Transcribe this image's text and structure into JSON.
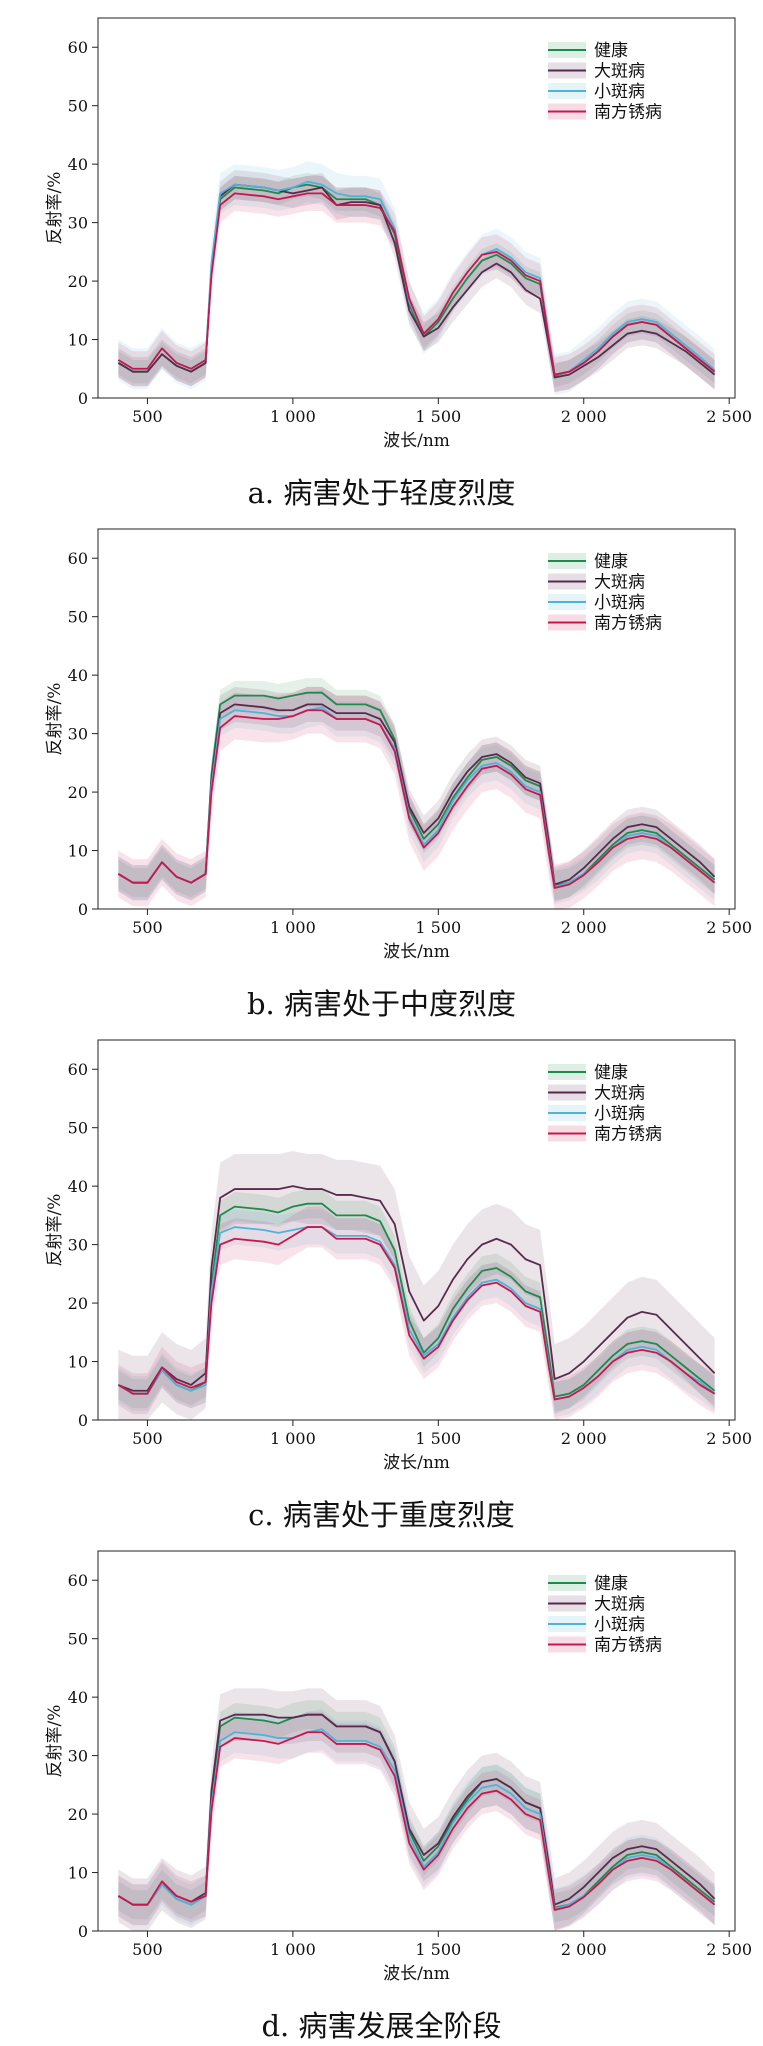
{
  "colors": {
    "healthy": "#1e8a4c",
    "large_spot": "#5a2a4e",
    "small_spot": "#4fb3d9",
    "rust": "#c8174f"
  },
  "chart_data": [
    {
      "type": "line",
      "caption": "a. 病害处于轻度烈度",
      "xlabel": "波长/nm",
      "ylabel": "反射率/%",
      "xlim": [
        330,
        2520
      ],
      "ylim": [
        0,
        65
      ],
      "xticks": [
        500,
        1000,
        1500,
        2000,
        2500
      ],
      "xtick_labels": [
        "500",
        "1 000",
        "1 500",
        "2 000",
        "2 500"
      ],
      "yticks": [
        0,
        10,
        20,
        30,
        40,
        50,
        60
      ],
      "ytick_labels": [
        "0",
        "10",
        "20",
        "30",
        "40",
        "50",
        "60"
      ],
      "legend_position": "top-right",
      "x": [
        400,
        450,
        500,
        550,
        600,
        650,
        700,
        720,
        750,
        800,
        900,
        950,
        1000,
        1050,
        1100,
        1150,
        1200,
        1250,
        1300,
        1350,
        1400,
        1450,
        1500,
        1550,
        1600,
        1650,
        1700,
        1750,
        1800,
        1850,
        1880,
        1900,
        1950,
        2000,
        2050,
        2100,
        2150,
        2200,
        2250,
        2300,
        2350,
        2400,
        2450
      ],
      "series": [
        {
          "name": "健康",
          "key": "healthy",
          "values": [
            6.0,
            4.5,
            4.5,
            7.5,
            5.5,
            4.5,
            6.0,
            22.0,
            34.0,
            36.0,
            35.5,
            35.0,
            36.0,
            36.5,
            36.0,
            34.0,
            34.0,
            34.0,
            33.0,
            28.0,
            16.0,
            10.5,
            13.0,
            17.0,
            20.5,
            23.5,
            24.5,
            23.0,
            20.5,
            19.5,
            10.0,
            3.8,
            4.5,
            6.0,
            8.0,
            10.5,
            12.5,
            13.0,
            12.5,
            10.5,
            8.5,
            6.5,
            4.5
          ],
          "spread": 2.0
        },
        {
          "name": "大斑病",
          "key": "large_spot",
          "values": [
            6.0,
            4.5,
            4.5,
            7.5,
            5.5,
            4.5,
            6.0,
            22.0,
            34.5,
            36.5,
            36.0,
            35.5,
            35.0,
            35.5,
            36.0,
            33.0,
            33.5,
            33.5,
            33.0,
            26.5,
            15.0,
            10.5,
            12.0,
            15.5,
            18.5,
            21.5,
            23.0,
            21.5,
            18.5,
            17.0,
            9.0,
            3.5,
            4.0,
            5.5,
            7.0,
            9.0,
            11.0,
            11.5,
            11.0,
            9.5,
            8.0,
            6.0,
            4.0
          ],
          "spread": 2.5
        },
        {
          "name": "小斑病",
          "key": "small_spot",
          "values": [
            6.5,
            5.0,
            5.0,
            8.5,
            6.0,
            5.0,
            6.5,
            23.0,
            35.0,
            36.5,
            36.0,
            35.5,
            36.0,
            37.0,
            36.5,
            35.0,
            34.5,
            34.5,
            34.0,
            29.0,
            16.5,
            11.0,
            13.5,
            18.0,
            21.5,
            24.5,
            25.5,
            24.0,
            21.5,
            20.5,
            10.5,
            4.0,
            4.5,
            6.5,
            8.5,
            11.0,
            13.0,
            13.5,
            13.0,
            11.0,
            9.0,
            7.0,
            4.8
          ],
          "spread": 3.5
        },
        {
          "name": "南方锈病",
          "key": "rust",
          "values": [
            6.5,
            5.0,
            5.0,
            8.5,
            6.0,
            5.0,
            6.5,
            21.0,
            33.0,
            35.0,
            34.5,
            34.0,
            34.5,
            35.0,
            35.0,
            33.0,
            33.0,
            33.0,
            32.5,
            28.5,
            17.0,
            11.0,
            13.5,
            18.0,
            21.5,
            24.5,
            25.0,
            23.5,
            21.0,
            20.0,
            10.0,
            4.0,
            4.5,
            6.0,
            8.0,
            10.5,
            12.5,
            13.0,
            12.5,
            10.5,
            8.5,
            6.5,
            4.5
          ],
          "spread": 3.0
        }
      ]
    },
    {
      "type": "line",
      "caption": "b. 病害处于中度烈度",
      "xlabel": "波长/nm",
      "ylabel": "反射率/%",
      "xlim": [
        330,
        2520
      ],
      "ylim": [
        0,
        65
      ],
      "xticks": [
        500,
        1000,
        1500,
        2000,
        2500
      ],
      "xtick_labels": [
        "500",
        "1 000",
        "1 500",
        "2 000",
        "2 500"
      ],
      "yticks": [
        0,
        10,
        20,
        30,
        40,
        50,
        60
      ],
      "ytick_labels": [
        "0",
        "10",
        "20",
        "30",
        "40",
        "50",
        "60"
      ],
      "legend_position": "top-right",
      "x": [
        400,
        450,
        500,
        550,
        600,
        650,
        700,
        720,
        750,
        800,
        900,
        950,
        1000,
        1050,
        1100,
        1150,
        1200,
        1250,
        1300,
        1350,
        1400,
        1450,
        1500,
        1550,
        1600,
        1650,
        1700,
        1750,
        1800,
        1850,
        1880,
        1900,
        1950,
        2000,
        2050,
        2100,
        2150,
        2200,
        2250,
        2300,
        2350,
        2400,
        2450
      ],
      "series": [
        {
          "name": "健康",
          "key": "healthy",
          "values": [
            6.0,
            4.5,
            4.5,
            8.0,
            5.5,
            4.5,
            6.0,
            23.0,
            35.0,
            36.5,
            36.5,
            36.0,
            36.5,
            37.0,
            37.0,
            35.0,
            35.0,
            35.0,
            34.0,
            29.0,
            17.0,
            12.0,
            14.5,
            19.0,
            22.5,
            25.5,
            26.0,
            24.5,
            22.0,
            21.0,
            11.0,
            4.0,
            4.5,
            6.0,
            8.5,
            11.0,
            13.0,
            13.5,
            13.0,
            11.0,
            9.0,
            7.0,
            5.0
          ],
          "spread": 2.5
        },
        {
          "name": "大斑病",
          "key": "large_spot",
          "values": [
            6.0,
            4.5,
            4.5,
            8.0,
            5.5,
            4.5,
            6.0,
            22.0,
            33.5,
            35.0,
            34.5,
            34.0,
            34.0,
            35.0,
            35.0,
            33.5,
            33.5,
            33.5,
            32.5,
            28.5,
            17.5,
            13.0,
            15.5,
            20.0,
            23.5,
            26.0,
            26.5,
            25.0,
            22.5,
            21.5,
            11.5,
            4.2,
            5.0,
            7.0,
            9.5,
            12.0,
            14.0,
            14.5,
            14.0,
            12.0,
            10.0,
            8.0,
            5.5
          ],
          "spread": 3.0
        },
        {
          "name": "小斑病",
          "key": "small_spot",
          "values": [
            6.0,
            4.5,
            4.5,
            8.0,
            5.5,
            4.5,
            6.0,
            21.0,
            32.5,
            34.0,
            33.5,
            33.0,
            33.0,
            34.0,
            34.5,
            32.5,
            32.5,
            32.5,
            31.5,
            27.5,
            16.0,
            11.0,
            13.5,
            18.5,
            22.0,
            24.5,
            25.0,
            23.5,
            21.0,
            20.0,
            10.0,
            3.8,
            4.5,
            6.0,
            8.0,
            10.5,
            12.5,
            13.0,
            12.5,
            10.5,
            8.5,
            6.5,
            4.5
          ],
          "spread": 3.0
        },
        {
          "name": "南方锈病",
          "key": "rust",
          "values": [
            6.0,
            4.5,
            4.5,
            8.0,
            5.5,
            4.5,
            6.0,
            20.0,
            31.0,
            33.0,
            32.5,
            32.5,
            33.0,
            34.0,
            34.0,
            32.5,
            32.5,
            32.5,
            31.5,
            27.0,
            15.5,
            10.5,
            13.0,
            17.5,
            21.0,
            24.0,
            24.5,
            23.0,
            20.5,
            19.5,
            9.5,
            3.6,
            4.2,
            5.8,
            8.0,
            10.5,
            12.0,
            12.5,
            12.0,
            10.5,
            8.5,
            6.5,
            4.5
          ],
          "spread": 4.0
        }
      ]
    },
    {
      "type": "line",
      "caption": "c. 病害处于重度烈度",
      "xlabel": "波长/nm",
      "ylabel": "反射率/%",
      "xlim": [
        330,
        2520
      ],
      "ylim": [
        0,
        65
      ],
      "xticks": [
        500,
        1000,
        1500,
        2000,
        2500
      ],
      "xtick_labels": [
        "500",
        "1 000",
        "1 500",
        "2 000",
        "2 500"
      ],
      "yticks": [
        0,
        10,
        20,
        30,
        40,
        50,
        60
      ],
      "ytick_labels": [
        "0",
        "10",
        "20",
        "30",
        "40",
        "50",
        "60"
      ],
      "legend_position": "top-right",
      "x": [
        400,
        450,
        500,
        550,
        600,
        650,
        700,
        720,
        750,
        800,
        900,
        950,
        1000,
        1050,
        1100,
        1150,
        1200,
        1250,
        1300,
        1350,
        1400,
        1450,
        1500,
        1550,
        1600,
        1650,
        1700,
        1750,
        1800,
        1850,
        1880,
        1900,
        1950,
        2000,
        2050,
        2100,
        2150,
        2200,
        2250,
        2300,
        2350,
        2400,
        2450
      ],
      "series": [
        {
          "name": "健康",
          "key": "healthy",
          "values": [
            6.0,
            4.5,
            4.5,
            8.5,
            6.0,
            5.0,
            6.5,
            23.0,
            35.0,
            36.5,
            36.0,
            35.5,
            36.5,
            37.0,
            37.0,
            35.0,
            35.0,
            35.0,
            34.0,
            29.0,
            17.0,
            11.5,
            14.0,
            19.0,
            22.5,
            25.5,
            26.0,
            24.5,
            22.0,
            21.0,
            11.0,
            4.0,
            4.5,
            6.0,
            8.5,
            11.0,
            13.0,
            13.5,
            13.0,
            11.0,
            9.0,
            7.0,
            5.0
          ],
          "spread": 2.5
        },
        {
          "name": "大斑病",
          "key": "large_spot",
          "values": [
            6.0,
            5.0,
            5.0,
            9.0,
            7.0,
            6.0,
            8.0,
            26.0,
            38.0,
            39.5,
            39.5,
            39.5,
            40.0,
            39.5,
            39.5,
            38.5,
            38.5,
            38.0,
            37.5,
            33.5,
            22.0,
            17.0,
            19.5,
            24.0,
            27.5,
            30.0,
            31.0,
            30.0,
            27.5,
            26.5,
            15.0,
            7.0,
            8.0,
            10.0,
            12.5,
            15.0,
            17.5,
            18.5,
            18.0,
            15.5,
            13.0,
            10.5,
            8.0
          ],
          "spread": 6.0
        },
        {
          "name": "小斑病",
          "key": "small_spot",
          "values": [
            6.0,
            4.5,
            4.5,
            8.5,
            6.0,
            5.0,
            6.0,
            22.0,
            32.0,
            33.0,
            32.5,
            32.0,
            32.5,
            33.0,
            33.0,
            31.5,
            31.5,
            31.5,
            30.5,
            26.5,
            15.5,
            11.0,
            13.0,
            17.5,
            21.0,
            23.5,
            24.0,
            22.5,
            20.0,
            19.0,
            9.5,
            3.5,
            4.0,
            5.5,
            7.5,
            10.0,
            12.0,
            12.5,
            12.0,
            10.0,
            8.0,
            6.5,
            4.5
          ],
          "spread": 3.0
        },
        {
          "name": "南方锈病",
          "key": "rust",
          "values": [
            6.0,
            4.5,
            4.5,
            9.0,
            6.5,
            5.5,
            6.5,
            20.0,
            30.0,
            31.0,
            30.5,
            30.0,
            31.5,
            33.0,
            33.0,
            31.0,
            31.0,
            31.0,
            30.0,
            26.0,
            14.5,
            10.5,
            12.5,
            17.0,
            20.5,
            23.0,
            23.5,
            22.0,
            19.5,
            18.5,
            9.0,
            3.5,
            4.0,
            5.5,
            7.5,
            10.0,
            11.5,
            12.0,
            11.5,
            10.0,
            8.0,
            6.0,
            4.5
          ],
          "spread": 3.5
        }
      ]
    },
    {
      "type": "line",
      "caption": "d. 病害发展全阶段",
      "xlabel": "波长/nm",
      "ylabel": "反射率/%",
      "xlim": [
        330,
        2520
      ],
      "ylim": [
        0,
        65
      ],
      "xticks": [
        500,
        1000,
        1500,
        2000,
        2500
      ],
      "xtick_labels": [
        "500",
        "1 000",
        "1 500",
        "2 000",
        "2 500"
      ],
      "yticks": [
        0,
        10,
        20,
        30,
        40,
        50,
        60
      ],
      "ytick_labels": [
        "0",
        "10",
        "20",
        "30",
        "40",
        "50",
        "60"
      ],
      "legend_position": "top-right",
      "x": [
        400,
        450,
        500,
        550,
        600,
        650,
        700,
        720,
        750,
        800,
        900,
        950,
        1000,
        1050,
        1100,
        1150,
        1200,
        1250,
        1300,
        1350,
        1400,
        1450,
        1500,
        1550,
        1600,
        1650,
        1700,
        1750,
        1800,
        1850,
        1880,
        1900,
        1950,
        2000,
        2050,
        2100,
        2150,
        2200,
        2250,
        2300,
        2350,
        2400,
        2450
      ],
      "series": [
        {
          "name": "健康",
          "key": "healthy",
          "values": [
            6.0,
            4.5,
            4.5,
            8.0,
            5.5,
            4.5,
            6.0,
            23.0,
            35.0,
            36.5,
            36.0,
            35.5,
            36.5,
            37.0,
            37.0,
            35.0,
            35.0,
            35.0,
            34.0,
            29.0,
            17.0,
            12.0,
            14.5,
            19.0,
            22.5,
            25.5,
            26.0,
            24.5,
            22.0,
            21.0,
            11.0,
            4.0,
            4.5,
            6.0,
            8.5,
            11.0,
            13.0,
            13.5,
            13.0,
            11.0,
            9.0,
            7.0,
            5.0
          ],
          "spread": 2.5
        },
        {
          "name": "大斑病",
          "key": "large_spot",
          "values": [
            6.0,
            4.5,
            4.5,
            8.0,
            6.0,
            5.0,
            6.5,
            24.0,
            36.0,
            37.0,
            37.0,
            36.5,
            36.5,
            37.0,
            37.0,
            35.0,
            35.0,
            35.0,
            34.0,
            29.0,
            17.5,
            13.0,
            15.0,
            19.5,
            23.0,
            25.5,
            26.0,
            24.5,
            22.0,
            21.0,
            11.5,
            4.5,
            5.5,
            7.5,
            10.0,
            12.5,
            14.0,
            14.5,
            14.0,
            12.0,
            10.0,
            8.0,
            5.5
          ],
          "spread": 4.5
        },
        {
          "name": "小斑病",
          "key": "small_spot",
          "values": [
            6.0,
            4.5,
            4.5,
            8.0,
            5.5,
            4.5,
            6.0,
            21.5,
            32.5,
            34.0,
            33.5,
            33.0,
            33.0,
            34.0,
            34.5,
            32.5,
            32.5,
            32.5,
            31.5,
            27.5,
            16.0,
            11.0,
            13.5,
            18.5,
            22.0,
            24.5,
            25.0,
            23.5,
            21.0,
            20.0,
            10.0,
            3.8,
            4.5,
            6.0,
            8.0,
            10.5,
            12.5,
            13.0,
            12.5,
            10.5,
            8.5,
            6.5,
            4.5
          ],
          "spread": 3.5
        },
        {
          "name": "南方锈病",
          "key": "rust",
          "values": [
            6.0,
            4.5,
            4.5,
            8.5,
            6.0,
            5.0,
            6.0,
            20.5,
            31.5,
            33.0,
            32.5,
            32.0,
            33.0,
            34.0,
            34.0,
            32.0,
            32.0,
            32.0,
            31.0,
            26.5,
            15.0,
            10.5,
            13.0,
            17.5,
            21.0,
            23.5,
            24.0,
            22.5,
            20.0,
            19.0,
            9.5,
            3.6,
            4.2,
            5.8,
            8.0,
            10.5,
            12.0,
            12.5,
            12.0,
            10.5,
            8.5,
            6.5,
            4.5
          ],
          "spread": 3.5
        }
      ]
    }
  ]
}
